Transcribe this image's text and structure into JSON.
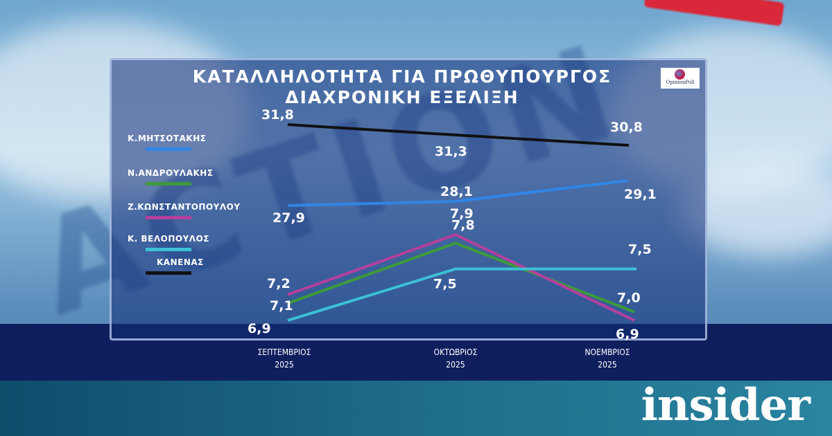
{
  "title_line1": "ΚΑΤΑΛΛΗΛΟΤΗΤΑ ΓΙΑ ΠΡΩΘΥΠΟΥΡΓΟΣ",
  "title_line2": "ΔΙΑΧΡΟΝΙΚΗ ΕΞΕΛΙΞΗ",
  "pollster_logo": "OpinionPoll",
  "brand": "insider",
  "chart_data": {
    "type": "line",
    "title": "ΚΑΤΑΛΛΗΛΟΤΗΤΑ ΓΙΑ ΠΡΩΘΥΠΟΥΡΓΟΣ ΔΙΑΧΡΟΝΙΚΗ ΕΞΕΛΙΞΗ",
    "categories": [
      {
        "month": "ΣΕΠΤΕΜΒΡΙΟΣ",
        "year": "2025"
      },
      {
        "month": "ΟΚΤΩΒΡΙΟΣ",
        "year": "2025"
      },
      {
        "month": "ΝΟΕΜΒΡΙΟΣ",
        "year": "2025"
      }
    ],
    "legend_position": "left",
    "series": [
      {
        "name": "Κ.ΜΗΤΣΟΤΑΚΗΣ",
        "color": "#2f86e6",
        "values": [
          27.9,
          28.1,
          29.1
        ],
        "labels": [
          "27,9",
          "28,1",
          "29,1"
        ]
      },
      {
        "name": "Ν.ΑΝΔΡΟΥΛΑΚΗΣ",
        "color": "#3e9a3a",
        "values": [
          7.1,
          7.8,
          7.0
        ],
        "labels": [
          "7,1",
          "7,8",
          "7,0"
        ]
      },
      {
        "name": "Ζ.ΚΩΝΣΤΑΝΤΟΠΟΥΛΟΥ",
        "color": "#b4409e",
        "values": [
          7.2,
          7.9,
          6.9
        ],
        "labels": [
          "7,2",
          "7,9",
          "6,9"
        ]
      },
      {
        "name": "Κ.  ΒΕΛΟΠΟΥΛΟΣ",
        "color": "#3cc1d6",
        "values": [
          6.9,
          7.5,
          7.5
        ],
        "labels": [
          "6,9",
          "7,5",
          "7,5"
        ]
      },
      {
        "name": "ΚΑΝΕΝΑΣ",
        "color": "#111111",
        "values": [
          31.8,
          31.3,
          30.8
        ],
        "labels": [
          "31,8",
          "31,3",
          "30,8"
        ]
      }
    ]
  }
}
